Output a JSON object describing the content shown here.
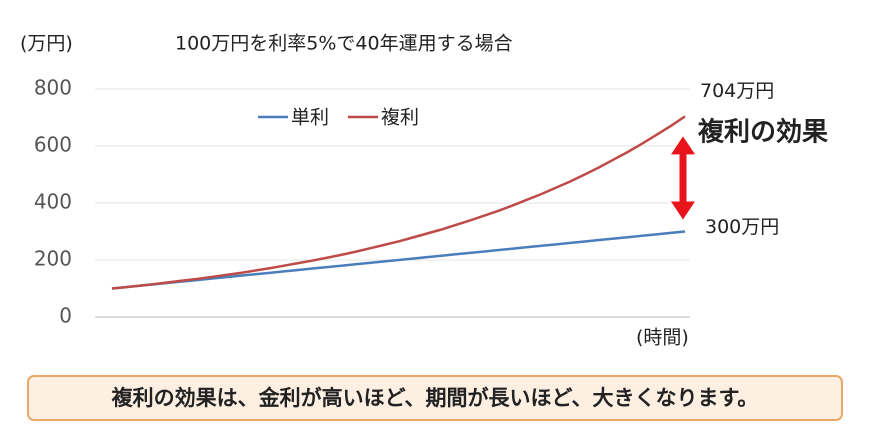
{
  "chart_data": {
    "type": "line",
    "title": "100万円を利率5%で40年運用する場合",
    "y_label": "(万円)",
    "x_label": "(時間)",
    "categories": [
      null,
      null,
      null,
      null,
      null,
      null,
      null,
      null,
      null,
      null,
      null,
      null,
      null,
      null,
      null,
      null,
      null,
      null,
      null,
      null,
      null,
      null,
      null,
      null,
      null,
      null,
      null,
      null,
      null,
      null,
      null,
      null,
      null,
      null,
      null,
      null,
      null,
      null,
      null,
      null,
      null
    ],
    "series": [
      {
        "name": "単利",
        "color": "#4a7ebb",
        "values": [
          100,
          105,
          110,
          115,
          120,
          125,
          130,
          135,
          140,
          145,
          150,
          155,
          160,
          165,
          170,
          175,
          180,
          185,
          190,
          195,
          200,
          205,
          210,
          215,
          220,
          225,
          230,
          235,
          240,
          245,
          250,
          255,
          260,
          265,
          270,
          275,
          280,
          285,
          290,
          295,
          300
        ],
        "end_label": "300万円"
      },
      {
        "name": "複利",
        "color": "#be4b48",
        "values": [
          100,
          105,
          110,
          116,
          122,
          128,
          134,
          141,
          148,
          155,
          163,
          171,
          180,
          189,
          198,
          208,
          218,
          229,
          241,
          253,
          265,
          279,
          293,
          307,
          323,
          339,
          356,
          373,
          392,
          412,
          432,
          454,
          476,
          500,
          525,
          552,
          579,
          608,
          639,
          670,
          704
        ],
        "end_label": "704万円"
      }
    ],
    "ylim": [
      0,
      800
    ],
    "yticks": [
      0,
      200,
      400,
      600,
      800
    ],
    "grid": true,
    "legend": "top-left",
    "annotation": {
      "text": "複利の効果",
      "color": "#e8141c"
    }
  },
  "footer": "複利の効果は、金利が高いほど、期間が長いほど、大きくなります。"
}
